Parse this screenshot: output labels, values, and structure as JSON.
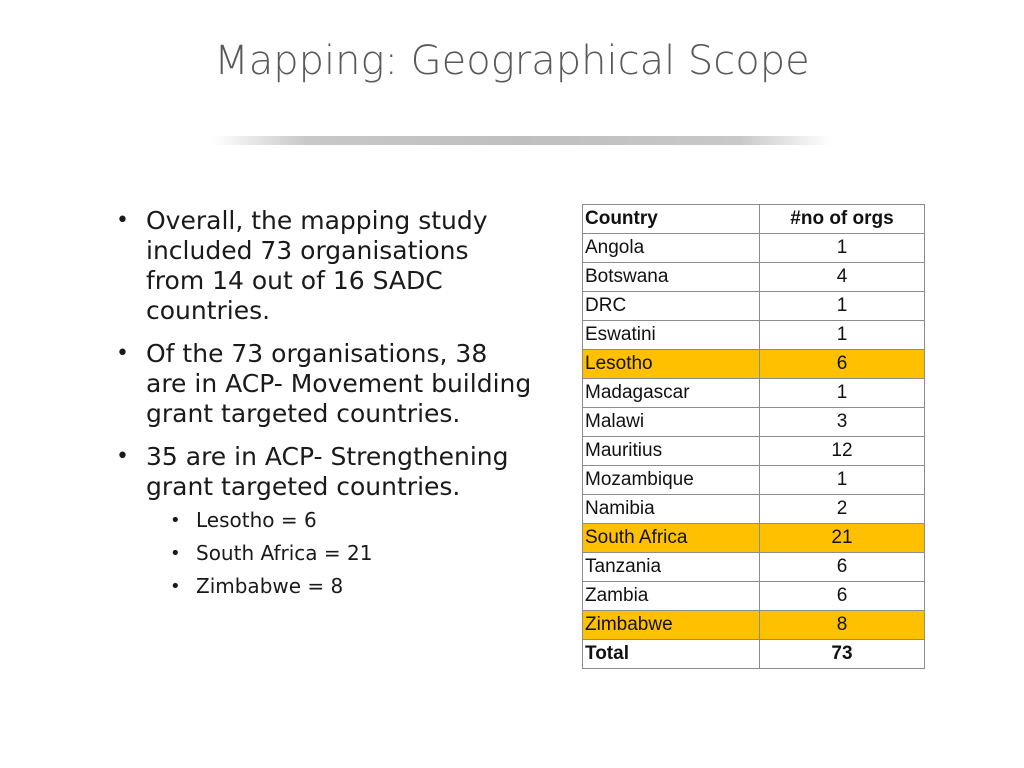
{
  "slide": {
    "title": "Mapping: Geographical Scope"
  },
  "bullets": [
    {
      "text": "Overall, the mapping study included 73 organisations from 14 out of 16 SADC countries."
    },
    {
      "text": "Of the 73 organisations, 38 are in ACP- Movement building grant targeted countries."
    },
    {
      "text": "35 are in ACP- Strengthening grant targeted countries."
    }
  ],
  "sub_bullets": [
    {
      "text": "Lesotho = 6"
    },
    {
      "text": "South Africa = 21"
    },
    {
      "text": "Zimbabwe = 8"
    }
  ],
  "bullet_glyph": "•",
  "table": {
    "headers": [
      "Country",
      "#no of orgs"
    ],
    "highlight_color": "#ffc000",
    "rows": [
      {
        "country": "Angola",
        "orgs": "1",
        "highlight": false
      },
      {
        "country": "Botswana",
        "orgs": "4",
        "highlight": false
      },
      {
        "country": "DRC",
        "orgs": "1",
        "highlight": false
      },
      {
        "country": "Eswatini",
        "orgs": "1",
        "highlight": false
      },
      {
        "country": "Lesotho",
        "orgs": "6",
        "highlight": true
      },
      {
        "country": "Madagascar",
        "orgs": "1",
        "highlight": false
      },
      {
        "country": "Malawi",
        "orgs": "3",
        "highlight": false
      },
      {
        "country": "Mauritius",
        "orgs": "12",
        "highlight": false
      },
      {
        "country": "Mozambique",
        "orgs": "1",
        "highlight": false
      },
      {
        "country": "Namibia",
        "orgs": "2",
        "highlight": false
      },
      {
        "country": "South Africa",
        "orgs": "21",
        "highlight": true
      },
      {
        "country": "Tanzania",
        "orgs": "6",
        "highlight": false
      },
      {
        "country": "Zambia",
        "orgs": "6",
        "highlight": false
      },
      {
        "country": "Zimbabwe",
        "orgs": "8",
        "highlight": true
      }
    ],
    "total": {
      "label": "Total",
      "value": "73"
    }
  }
}
